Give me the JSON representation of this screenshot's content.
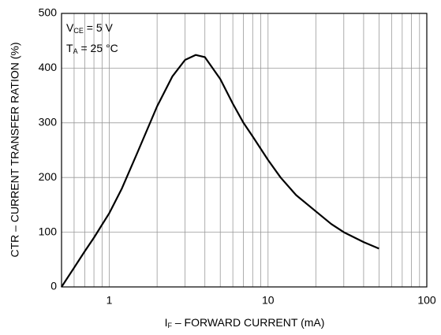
{
  "chart_data": {
    "type": "line",
    "x_label": {
      "main": "I",
      "sub": "F",
      "rest": " – FORWARD CURRENT (mA)"
    },
    "y_label": "CTR – CURRENT TRANSFER RATION (%)",
    "annotations": [
      {
        "main": "V",
        "sub": "CE",
        "rest": " = 5 V"
      },
      {
        "main": "T",
        "sub": "A",
        "rest": " = 25 °C"
      }
    ],
    "x": [
      0.5,
      0.6,
      0.7,
      0.8,
      1,
      1.2,
      1.5,
      2,
      2.5,
      3,
      3.5,
      4,
      5,
      6,
      7,
      8,
      10,
      12,
      15,
      20,
      25,
      30,
      40,
      50
    ],
    "series": [
      {
        "name": "CTR",
        "color": "#000000",
        "values": [
          0,
          35,
          65,
          90,
          135,
          180,
          245,
          330,
          385,
          415,
          424,
          420,
          380,
          335,
          300,
          275,
          232,
          200,
          168,
          138,
          115,
          100,
          82,
          70
        ]
      }
    ],
    "xlim": [
      0.5,
      100
    ],
    "xscale": "log",
    "xticks": [
      1,
      10,
      100
    ],
    "x_minor_ticks": [
      0.6,
      0.7,
      0.8,
      0.9,
      2,
      3,
      4,
      5,
      6,
      7,
      8,
      9,
      20,
      30,
      40,
      50,
      60,
      70,
      80,
      90
    ],
    "ylim": [
      0,
      500
    ],
    "yticks": [
      0,
      100,
      200,
      300,
      400,
      500
    ],
    "grid": true
  }
}
